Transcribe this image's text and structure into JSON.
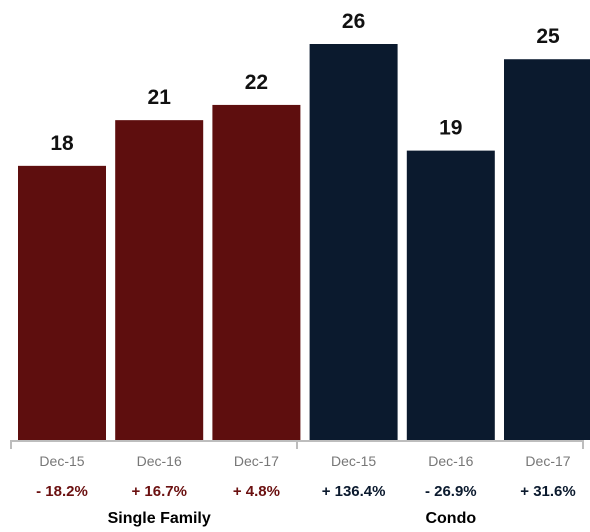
{
  "chart_data": {
    "type": "bar",
    "title": "",
    "xlabel": "",
    "ylabel": "",
    "ylim": [
      0,
      28
    ],
    "grid": false,
    "legend": "none",
    "groups": [
      {
        "label": "Single Family",
        "color": "#5e0e0e",
        "change_color": "#6b1010",
        "categories": [
          "Dec-15",
          "Dec-16",
          "Dec-17"
        ],
        "values": [
          18,
          21,
          22
        ],
        "value_labels": [
          "18",
          "21",
          "22"
        ],
        "changes": [
          "- 18.2%",
          "+ 16.7%",
          "+ 4.8%"
        ]
      },
      {
        "label": "Condo",
        "color": "#0b1a2e",
        "change_color": "#0b1a2e",
        "categories": [
          "Dec-15",
          "Dec-16",
          "Dec-17"
        ],
        "values": [
          26,
          19,
          25
        ],
        "value_labels": [
          "26",
          "19",
          "25"
        ],
        "changes": [
          "+ 136.4%",
          "- 26.9%",
          "+ 31.6%"
        ]
      }
    ]
  }
}
